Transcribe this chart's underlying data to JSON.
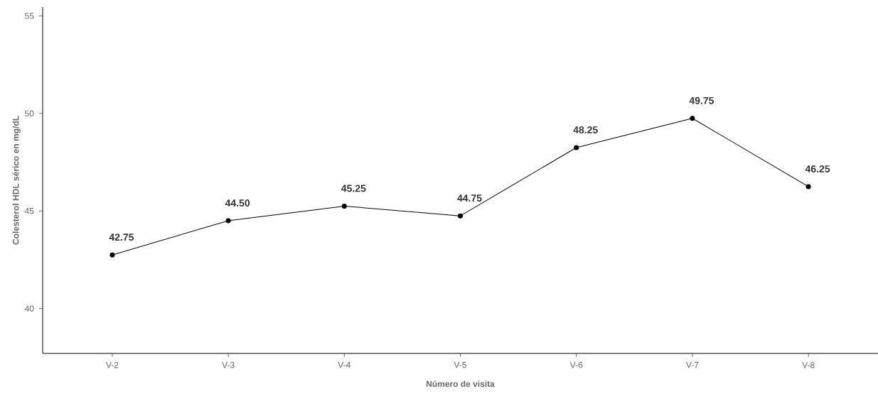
{
  "chart_data": {
    "type": "line",
    "xlabel": "Número de visita",
    "ylabel": "Colesterol HDL sérico en mg/dL",
    "categories": [
      "V-2",
      "V-3",
      "V-4",
      "V-5",
      "V-6",
      "V-7",
      "V-8"
    ],
    "values": [
      42.75,
      44.5,
      45.25,
      44.75,
      48.25,
      49.75,
      46.25
    ],
    "value_labels": [
      "42.75",
      "44.50",
      "45.25",
      "44.75",
      "48.25",
      "49.75",
      "46.25"
    ],
    "color": "#000000",
    "marker": "circle",
    "line_style": "solid",
    "ylim": [
      37.7,
      55.45
    ],
    "yticks": [
      40,
      45,
      50,
      55
    ],
    "grid": false
  }
}
